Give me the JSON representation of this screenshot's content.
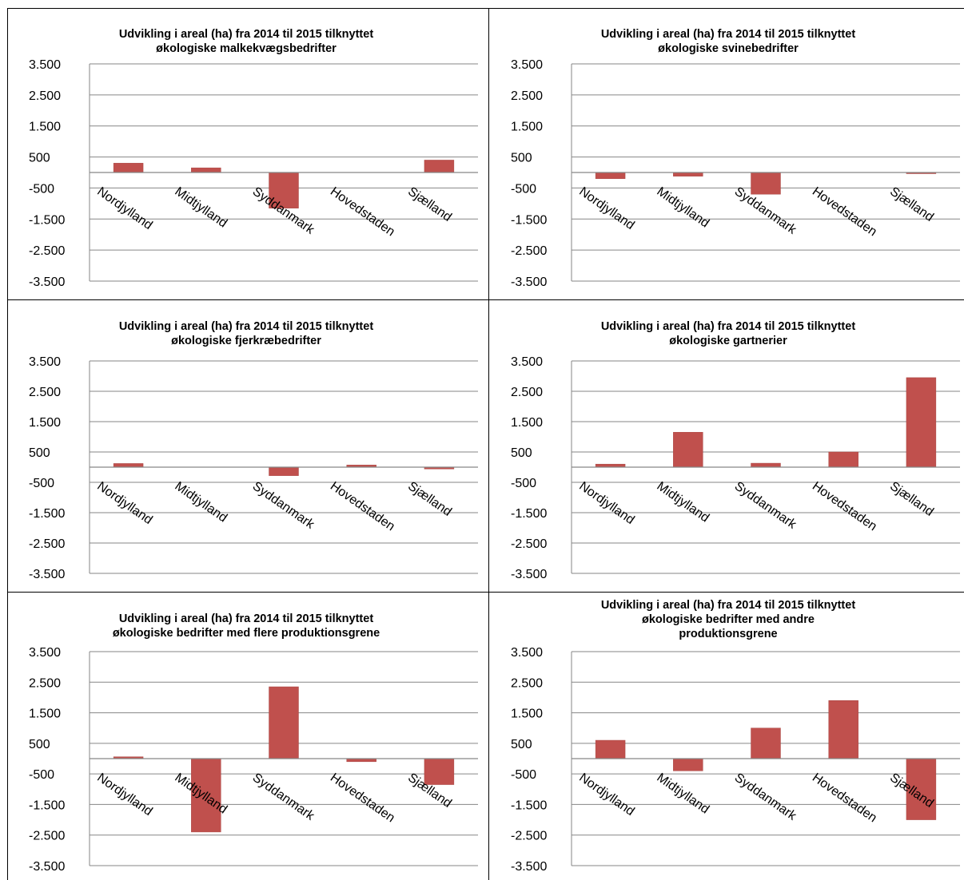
{
  "colors": {
    "bar": "#c0504d",
    "bar_edge": "#a94744",
    "gridline": "#868686",
    "axis": "#868686",
    "frame": "#000000",
    "text": "#000000"
  },
  "chart_data": [
    {
      "type": "bar",
      "title_lines": [
        "Udvikling i areal (ha) fra 2014 til 2015 tilknyttet",
        "økologiske malkekvægsbedrifter"
      ],
      "categories": [
        "Nordjylland",
        "Midtjylland",
        "Syddanmark",
        "Hovedstaden",
        "Sjælland"
      ],
      "values": [
        300,
        150,
        -1150,
        0,
        400
      ],
      "ylim": [
        -3500,
        3500
      ],
      "yticks": [
        "3.500",
        "2.500",
        "1.500",
        "500",
        "-500",
        "-1.500",
        "-2.500",
        "-3.500"
      ],
      "ytick_values": [
        3500,
        2500,
        1500,
        500,
        -500,
        -1500,
        -2500,
        -3500
      ],
      "grid": true,
      "legend": "none"
    },
    {
      "type": "bar",
      "title_lines": [
        "Udvikling i areal (ha) fra 2014 til 2015 tilknyttet",
        "økologiske svinebedrifter"
      ],
      "categories": [
        "Nordjylland",
        "Midtjylland",
        "Syddanmark",
        "Hovedstaden",
        "Sjælland"
      ],
      "values": [
        -200,
        -120,
        -700,
        0,
        -30
      ],
      "ylim": [
        -3500,
        3500
      ],
      "yticks": [
        "3.500",
        "2.500",
        "1.500",
        "500",
        "-500",
        "-1.500",
        "-2.500",
        "-3.500"
      ],
      "ytick_values": [
        3500,
        2500,
        1500,
        500,
        -500,
        -1500,
        -2500,
        -3500
      ],
      "grid": true,
      "legend": "none"
    },
    {
      "type": "bar",
      "title_lines": [
        "Udvikling i areal (ha) fra 2014 til 2015 tilknyttet",
        "økologiske fjerkræbedrifter"
      ],
      "categories": [
        "Nordjylland",
        "Midtjylland",
        "Syddanmark",
        "Hovedstaden",
        "Sjælland"
      ],
      "values": [
        120,
        0,
        -280,
        70,
        -60
      ],
      "ylim": [
        -3500,
        3500
      ],
      "yticks": [
        "3.500",
        "2.500",
        "1.500",
        "500",
        "-500",
        "-1.500",
        "-2.500",
        "-3.500"
      ],
      "ytick_values": [
        3500,
        2500,
        1500,
        500,
        -500,
        -1500,
        -2500,
        -3500
      ],
      "grid": true,
      "legend": "none"
    },
    {
      "type": "bar",
      "title_lines": [
        "Udvikling i areal (ha) fra 2014 til 2015 tilknyttet",
        "økologiske gartnerier"
      ],
      "categories": [
        "Nordjylland",
        "Midtjylland",
        "Syddanmark",
        "Hovedstaden",
        "Sjælland"
      ],
      "values": [
        100,
        1150,
        130,
        500,
        2950
      ],
      "ylim": [
        -3500,
        3500
      ],
      "yticks": [
        "3.500",
        "2.500",
        "1.500",
        "500",
        "-500",
        "-1.500",
        "-2.500",
        "-3.500"
      ],
      "ytick_values": [
        3500,
        2500,
        1500,
        500,
        -500,
        -1500,
        -2500,
        -3500
      ],
      "grid": true,
      "legend": "none"
    },
    {
      "type": "bar",
      "title_lines": [
        "Udvikling i areal (ha) fra 2014 til 2015 tilknyttet",
        "økologiske bedrifter med flere produktionsgrene"
      ],
      "categories": [
        "Nordjylland",
        "Midtjylland",
        "Syddanmark",
        "Hovedstaden",
        "Sjælland"
      ],
      "values": [
        60,
        -2400,
        2350,
        -100,
        -850
      ],
      "ylim": [
        -3500,
        3500
      ],
      "yticks": [
        "3.500",
        "2.500",
        "1.500",
        "500",
        "-500",
        "-1.500",
        "-2.500",
        "-3.500"
      ],
      "ytick_values": [
        3500,
        2500,
        1500,
        500,
        -500,
        -1500,
        -2500,
        -3500
      ],
      "grid": true,
      "legend": "none"
    },
    {
      "type": "bar",
      "title_lines": [
        "Udvikling i areal (ha) fra 2014 til 2015 tilknyttet",
        "økologiske bedrifter med andre",
        "produktionsgrene"
      ],
      "categories": [
        "Nordjylland",
        "Midtjylland",
        "Syddanmark",
        "Hovedstaden",
        "Sjælland"
      ],
      "values": [
        600,
        -400,
        1000,
        1900,
        -2000
      ],
      "ylim": [
        -3500,
        3500
      ],
      "yticks": [
        "3.500",
        "2.500",
        "1.500",
        "500",
        "-500",
        "-1.500",
        "-2.500",
        "-3.500"
      ],
      "ytick_values": [
        3500,
        2500,
        1500,
        500,
        -500,
        -1500,
        -2500,
        -3500
      ],
      "grid": true,
      "legend": "none"
    }
  ]
}
